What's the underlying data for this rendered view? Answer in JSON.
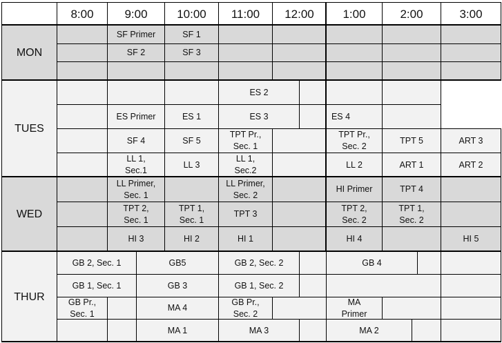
{
  "colors": {
    "shaded": "#d9d9d9",
    "plain": "#f2f2f2",
    "header": "#ffffff",
    "line": "#000000"
  },
  "header": {
    "times": [
      "8:00",
      "9:00",
      "10:00",
      "11:00",
      "12:00",
      "1:00",
      "2:00",
      "3:00"
    ]
  },
  "days": [
    {
      "name": "MON",
      "shaded": true,
      "rows": [
        [
          {
            "text": "",
            "span": 1
          },
          {
            "text": "SF Primer",
            "span": 1
          },
          {
            "text": "SF 1",
            "span": 1
          },
          {
            "text": "",
            "span": 1
          },
          {
            "text": "",
            "span": 1
          },
          {
            "text": "",
            "span": 1
          },
          {
            "text": "",
            "span": 1
          },
          {
            "text": "",
            "span": 1
          }
        ],
        [
          {
            "text": "",
            "span": 1
          },
          {
            "text": "SF 2",
            "span": 1
          },
          {
            "text": "SF 3",
            "span": 1
          },
          {
            "text": "",
            "span": 1
          },
          {
            "text": "",
            "span": 1
          },
          {
            "text": "",
            "span": 1
          },
          {
            "text": "",
            "span": 1
          },
          {
            "text": "",
            "span": 1
          }
        ],
        [
          {
            "text": "",
            "span": 1
          },
          {
            "text": "",
            "span": 1
          },
          {
            "text": "",
            "span": 1
          },
          {
            "text": "",
            "span": 1
          },
          {
            "text": "",
            "span": 1
          },
          {
            "text": "",
            "span": 1
          },
          {
            "text": "",
            "span": 1
          },
          {
            "text": "",
            "span": 1
          }
        ]
      ]
    },
    {
      "name": "TUES",
      "shaded": false,
      "rows": [
        [
          {
            "text": "",
            "span": 1
          },
          {
            "text": "",
            "span": 1
          },
          {
            "text": "",
            "span": 1
          },
          {
            "text": "ES 2",
            "span": 1.5
          },
          {
            "text": "",
            "span": 1.5
          },
          {
            "text": "",
            "span": 1
          }
        ],
        [
          {
            "text": "",
            "span": 1
          },
          {
            "text": "ES Primer",
            "span": 1
          },
          {
            "text": "ES 1",
            "span": 1
          },
          {
            "text": "ES 3",
            "span": 1.5
          },
          {
            "text": "ES 4",
            "span": 1.5
          },
          {
            "text": "",
            "span": 1
          }
        ],
        [
          {
            "text": "",
            "span": 1
          },
          {
            "text": "SF 4",
            "span": 1
          },
          {
            "text": "SF 5",
            "span": 1
          },
          {
            "text": "TPT Pr.,\nSec. 1",
            "span": 1
          },
          {
            "text": "",
            "span": 1
          },
          {
            "text": "TPT Pr.,\nSec. 2",
            "span": 1
          },
          {
            "text": "TPT 5",
            "span": 1
          },
          {
            "text": "ART 3",
            "span": 1
          }
        ],
        [
          {
            "text": "",
            "span": 1
          },
          {
            "text": "LL 1,\nSec.1",
            "span": 1
          },
          {
            "text": "LL 3",
            "span": 1
          },
          {
            "text": "LL 1,\nSec.2",
            "span": 1
          },
          {
            "text": "",
            "span": 1
          },
          {
            "text": "LL 2",
            "span": 1
          },
          {
            "text": "ART 1",
            "span": 1
          },
          {
            "text": "ART 2",
            "span": 1
          }
        ]
      ]
    },
    {
      "name": "WED",
      "shaded": true,
      "rows": [
        [
          {
            "text": "",
            "span": 1
          },
          {
            "text": "LL Primer,\nSec. 1",
            "span": 1
          },
          {
            "text": "",
            "span": 1
          },
          {
            "text": "LL Primer,\nSec. 2",
            "span": 1
          },
          {
            "text": "",
            "span": 1
          },
          {
            "text": "HI Primer",
            "span": 1
          },
          {
            "text": "TPT 4",
            "span": 1
          },
          {
            "text": "",
            "span": 1
          }
        ],
        [
          {
            "text": "",
            "span": 1
          },
          {
            "text": "TPT 2,\nSec. 1",
            "span": 1
          },
          {
            "text": "TPT 1,\nSec. 1",
            "span": 1
          },
          {
            "text": "TPT 3",
            "span": 1
          },
          {
            "text": "",
            "span": 1
          },
          {
            "text": "TPT 2,\nSec. 2",
            "span": 1
          },
          {
            "text": "TPT 1,\nSec. 2",
            "span": 1
          },
          {
            "text": "",
            "span": 1
          }
        ],
        [
          {
            "text": "",
            "span": 1
          },
          {
            "text": "HI 3",
            "span": 1
          },
          {
            "text": "HI 2",
            "span": 1
          },
          {
            "text": "HI 1",
            "span": 1
          },
          {
            "text": "",
            "span": 1
          },
          {
            "text": "HI 4",
            "span": 1
          },
          {
            "text": "",
            "span": 1
          },
          {
            "text": "HI 5",
            "span": 1
          }
        ]
      ]
    },
    {
      "name": "THUR",
      "shaded": false,
      "rows": [
        [
          {
            "text": "GB 2, Sec. 1",
            "span": 1.5
          },
          {
            "text": "GB5",
            "span": 1.5
          },
          {
            "text": "GB 2, Sec. 2",
            "span": 1.5
          },
          {
            "text": "",
            "span": 0.5
          },
          {
            "text": "GB 4",
            "span": 1.6
          },
          {
            "text": "",
            "span": 0.4
          },
          {
            "text": "",
            "span": 1
          }
        ],
        [
          {
            "text": "GB 1, Sec. 1",
            "span": 1.5
          },
          {
            "text": "GB 3",
            "span": 1.5
          },
          {
            "text": "GB 1, Sec. 2",
            "span": 1.5
          },
          {
            "text": "",
            "span": 0.5
          },
          {
            "text": "",
            "span": 2
          },
          {
            "text": "",
            "span": 1
          }
        ],
        [
          {
            "text": "GB Pr.,\nSec. 1",
            "span": 1
          },
          {
            "text": "",
            "span": 0.5
          },
          {
            "text": "MA 4",
            "span": 1.5
          },
          {
            "text": "GB Pr.,\nSec. 2",
            "span": 1
          },
          {
            "text": "",
            "span": 1
          },
          {
            "text": "MA\nPrimer",
            "span": 1
          },
          {
            "text": "",
            "span": 1
          },
          {
            "text": "",
            "span": 1
          }
        ],
        [
          {
            "text": "",
            "span": 1
          },
          {
            "text": "",
            "span": 0.5
          },
          {
            "text": "MA 1",
            "span": 1.5
          },
          {
            "text": "MA 3",
            "span": 1.5
          },
          {
            "text": "",
            "span": 0.5
          },
          {
            "text": "MA 2",
            "span": 1.5
          },
          {
            "text": "",
            "span": 0.5
          },
          {
            "text": "",
            "span": 1
          }
        ]
      ]
    }
  ]
}
